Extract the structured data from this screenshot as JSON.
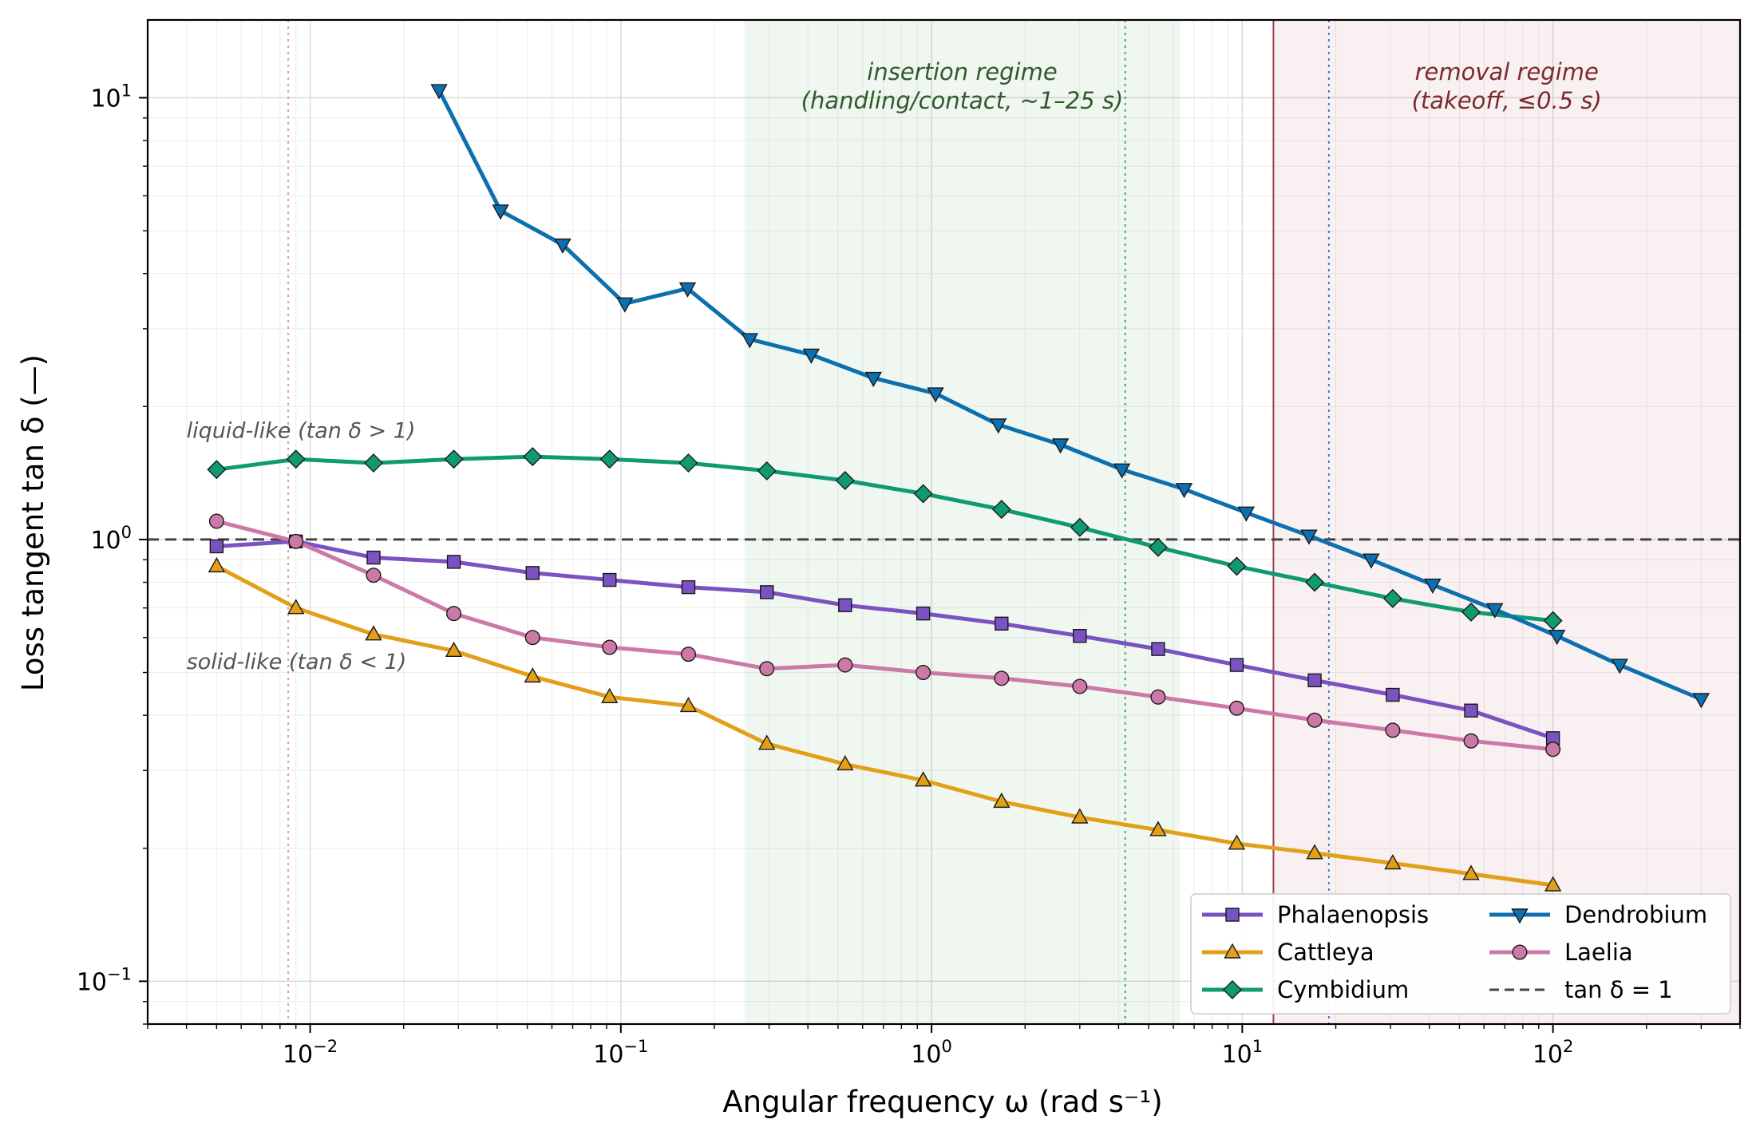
{
  "chart_data": {
    "type": "line",
    "xscale": "log",
    "yscale": "log",
    "xlim": [
      0.003,
      400
    ],
    "ylim": [
      0.08,
      15
    ],
    "xlabel": "Angular frequency ω (rad s⁻¹)",
    "ylabel": "Loss tangent tan δ (—)",
    "grid": true,
    "legend_position": "bottom-right",
    "x_ticks": [
      {
        "value": 0.01,
        "base": "10",
        "exp": "−2"
      },
      {
        "value": 0.1,
        "base": "10",
        "exp": "−1"
      },
      {
        "value": 1,
        "base": "10",
        "exp": "0"
      },
      {
        "value": 10,
        "base": "10",
        "exp": "1"
      },
      {
        "value": 100,
        "base": "10",
        "exp": "2"
      }
    ],
    "y_ticks": [
      {
        "value": 0.1,
        "base": "10",
        "exp": "−1"
      },
      {
        "value": 1,
        "base": "10",
        "exp": "0"
      },
      {
        "value": 10,
        "base": "10",
        "exp": "1"
      }
    ],
    "reference_line": {
      "name": "tan δ = 1",
      "y": 1,
      "color": "#444444"
    },
    "regions": [
      {
        "label_lines": [
          "insertion regime",
          "(handling/contact, ~1–25 s)"
        ],
        "x_range": [
          0.25,
          6.3
        ],
        "color": "#2e9e3e",
        "text_color": "#2f5a2a"
      },
      {
        "label_lines": [
          "removal regime",
          "(takeoff, ≤0.5 s)"
        ],
        "x_range": [
          12.6,
          400
        ],
        "color": "#b03a48",
        "text_color": "#7a2a2e",
        "border_x": 12.6,
        "border_color": "#a04048"
      }
    ],
    "dotted_markers": [
      {
        "x": 0.0085,
        "color": "#e89aa0"
      },
      {
        "x": 4.2,
        "color": "#3aae6a"
      },
      {
        "x": 19,
        "color": "#4477cc"
      }
    ],
    "state_labels": [
      {
        "text": "liquid-like (tan δ > 1)",
        "x": 0.004,
        "y": 1.7
      },
      {
        "text": "solid-like (tan δ < 1)",
        "x": 0.004,
        "y": 0.51
      }
    ],
    "series": [
      {
        "name": "Phalaenopsis",
        "color": "#7b52c2",
        "marker": "square",
        "x": [
          0.005,
          0.009,
          0.016,
          0.029,
          0.052,
          0.092,
          0.165,
          0.295,
          0.527,
          0.94,
          1.68,
          3.0,
          5.36,
          9.6,
          17.1,
          30.5,
          54.5,
          100
        ],
        "y": [
          0.965,
          0.99,
          0.91,
          0.89,
          0.84,
          0.81,
          0.78,
          0.76,
          0.71,
          0.68,
          0.645,
          0.605,
          0.565,
          0.52,
          0.48,
          0.445,
          0.41,
          0.355
        ]
      },
      {
        "name": "Cattleya",
        "color": "#e2a019",
        "marker": "triangle-up",
        "x": [
          0.005,
          0.009,
          0.016,
          0.029,
          0.052,
          0.092,
          0.165,
          0.295,
          0.527,
          0.94,
          1.68,
          3.0,
          5.36,
          9.6,
          17.1,
          30.5,
          54.5,
          100
        ],
        "y": [
          0.87,
          0.7,
          0.61,
          0.56,
          0.49,
          0.44,
          0.42,
          0.345,
          0.31,
          0.285,
          0.255,
          0.235,
          0.22,
          0.205,
          0.195,
          0.185,
          0.175,
          0.165
        ]
      },
      {
        "name": "Cymbidium",
        "color": "#0f9a72",
        "marker": "diamond",
        "x": [
          0.005,
          0.009,
          0.016,
          0.029,
          0.052,
          0.092,
          0.165,
          0.295,
          0.527,
          0.94,
          1.68,
          3.0,
          5.36,
          9.6,
          17.1,
          30.5,
          54.5,
          100
        ],
        "y": [
          1.44,
          1.52,
          1.49,
          1.52,
          1.54,
          1.52,
          1.49,
          1.43,
          1.36,
          1.27,
          1.17,
          1.065,
          0.96,
          0.87,
          0.8,
          0.735,
          0.685,
          0.655
        ]
      },
      {
        "name": "Dendrobium",
        "color": "#0c70b0",
        "marker": "triangle-down",
        "x": [
          0.026,
          0.041,
          0.065,
          0.103,
          0.164,
          0.26,
          0.41,
          0.65,
          1.03,
          1.64,
          2.6,
          4.1,
          6.5,
          10.3,
          16.4,
          26,
          41,
          65,
          103,
          164,
          300
        ],
        "y": [
          10.4,
          5.55,
          4.65,
          3.42,
          3.7,
          2.84,
          2.62,
          2.32,
          2.14,
          1.82,
          1.64,
          1.44,
          1.3,
          1.15,
          1.02,
          0.9,
          0.79,
          0.695,
          0.605,
          0.52,
          0.435
        ]
      },
      {
        "name": "Laelia",
        "color": "#cc79a7",
        "marker": "circle",
        "x": [
          0.005,
          0.009,
          0.016,
          0.029,
          0.052,
          0.092,
          0.165,
          0.295,
          0.527,
          0.94,
          1.68,
          3.0,
          5.36,
          9.6,
          17.1,
          30.5,
          54.5,
          100
        ],
        "y": [
          1.1,
          0.99,
          0.83,
          0.68,
          0.6,
          0.57,
          0.55,
          0.51,
          0.52,
          0.5,
          0.485,
          0.465,
          0.44,
          0.415,
          0.39,
          0.37,
          0.35,
          0.335
        ]
      }
    ]
  }
}
